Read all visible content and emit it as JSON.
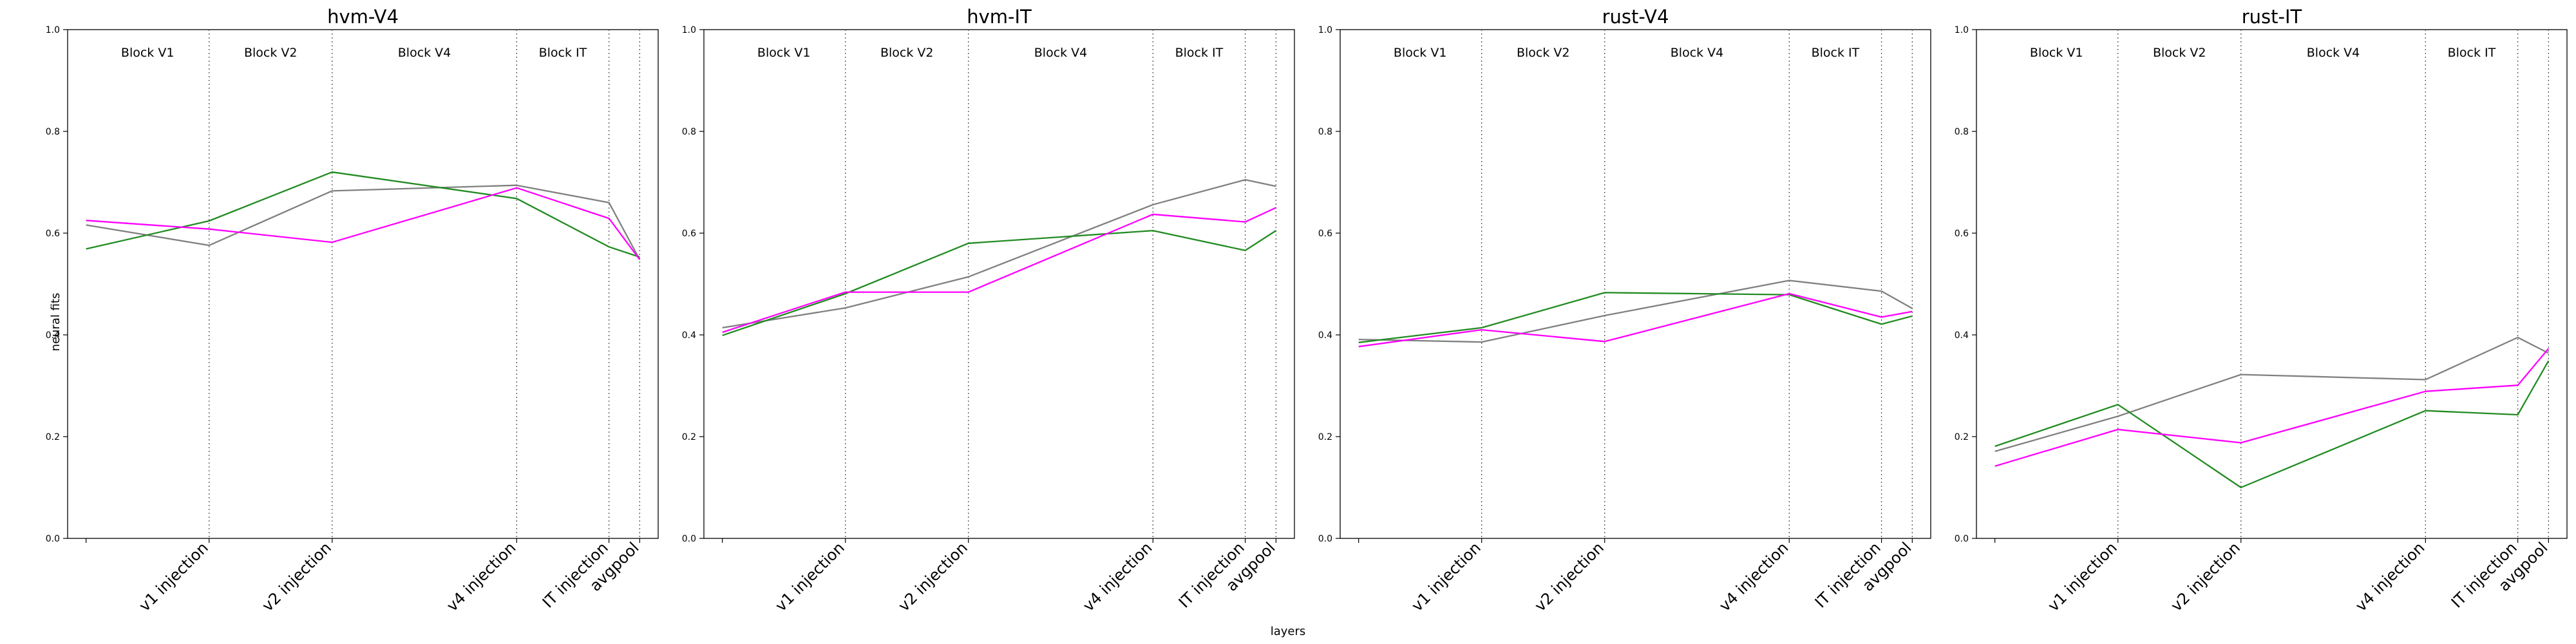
{
  "figure": {
    "xlabel": "layers",
    "ylabel": "neural fits"
  },
  "chart_data": [
    {
      "type": "line",
      "title": "hvm-V4",
      "ylim": [
        0.0,
        1.0
      ],
      "yticks": [
        "0.0",
        "0.2",
        "0.4",
        "0.6",
        "0.8",
        "1.0"
      ],
      "categories": [
        "",
        "v1 injection",
        "v2 injection",
        "v4 injection",
        "IT injection",
        "avgpool"
      ],
      "x": [
        0,
        1,
        2,
        3.5,
        4.25,
        4.5
      ],
      "grid": false,
      "colors": [
        "#808080",
        "#228B22",
        "#FF00FF"
      ],
      "series": [
        {
          "values": [
            0.616,
            0.576,
            0.683,
            0.694,
            0.66,
            0.548
          ]
        },
        {
          "values": [
            0.569,
            0.624,
            0.72,
            0.668,
            0.573,
            0.553
          ]
        },
        {
          "values": [
            0.625,
            0.608,
            0.582,
            0.689,
            0.629,
            0.548
          ]
        }
      ],
      "blocks": [
        {
          "label": "Block V1",
          "from": 0,
          "to": 1
        },
        {
          "label": "Block V2",
          "from": 1,
          "to": 2
        },
        {
          "label": "Block V4",
          "from": 2,
          "to": 3.5
        },
        {
          "label": "Block IT",
          "from": 3.5,
          "to": 4.25
        }
      ],
      "vlines": [
        1,
        2,
        3.5,
        4.25,
        4.5
      ]
    },
    {
      "type": "line",
      "title": "hvm-IT",
      "ylim": [
        0.0,
        1.0
      ],
      "yticks": [
        "0.0",
        "0.2",
        "0.4",
        "0.6",
        "0.8",
        "1.0"
      ],
      "categories": [
        "",
        "v1 injection",
        "v2 injection",
        "v4 injection",
        "IT injection",
        "avgpool"
      ],
      "x": [
        0,
        1,
        2,
        3.5,
        4.25,
        4.5
      ],
      "grid": false,
      "colors": [
        "#808080",
        "#228B22",
        "#FF00FF"
      ],
      "series": [
        {
          "values": [
            0.414,
            0.453,
            0.514,
            0.656,
            0.705,
            0.692
          ]
        },
        {
          "values": [
            0.399,
            0.481,
            0.58,
            0.605,
            0.566,
            0.605
          ]
        },
        {
          "values": [
            0.405,
            0.484,
            0.484,
            0.637,
            0.622,
            0.65
          ]
        }
      ],
      "blocks": [
        {
          "label": "Block V1",
          "from": 0,
          "to": 1
        },
        {
          "label": "Block V2",
          "from": 1,
          "to": 2
        },
        {
          "label": "Block V4",
          "from": 2,
          "to": 3.5
        },
        {
          "label": "Block IT",
          "from": 3.5,
          "to": 4.25
        }
      ],
      "vlines": [
        1,
        2,
        3.5,
        4.25,
        4.5
      ]
    },
    {
      "type": "line",
      "title": "rust-V4",
      "ylim": [
        0.0,
        1.0
      ],
      "yticks": [
        "0.0",
        "0.2",
        "0.4",
        "0.6",
        "0.8",
        "1.0"
      ],
      "categories": [
        "",
        "v1 injection",
        "v2 injection",
        "v4 injection",
        "IT injection",
        "avgpool"
      ],
      "x": [
        0,
        1,
        2,
        3.5,
        4.25,
        4.5
      ],
      "grid": false,
      "colors": [
        "#808080",
        "#228B22",
        "#FF00FF"
      ],
      "series": [
        {
          "values": [
            0.391,
            0.386,
            0.438,
            0.507,
            0.486,
            0.452
          ]
        },
        {
          "values": [
            0.385,
            0.414,
            0.483,
            0.479,
            0.421,
            0.437
          ]
        },
        {
          "values": [
            0.377,
            0.41,
            0.387,
            0.481,
            0.435,
            0.446
          ]
        }
      ],
      "blocks": [
        {
          "label": "Block V1",
          "from": 0,
          "to": 1
        },
        {
          "label": "Block V2",
          "from": 1,
          "to": 2
        },
        {
          "label": "Block V4",
          "from": 2,
          "to": 3.5
        },
        {
          "label": "Block IT",
          "from": 3.5,
          "to": 4.25
        }
      ],
      "vlines": [
        1,
        2,
        3.5,
        4.25,
        4.5
      ]
    },
    {
      "type": "line",
      "title": "rust-IT",
      "ylim": [
        0.0,
        1.0
      ],
      "yticks": [
        "0.0",
        "0.2",
        "0.4",
        "0.6",
        "0.8",
        "1.0"
      ],
      "categories": [
        "",
        "v1 injection",
        "v2 injection",
        "v4 injection",
        "IT injection",
        "avgpool"
      ],
      "x": [
        0,
        1,
        2,
        3.5,
        4.25,
        4.5
      ],
      "grid": false,
      "colors": [
        "#808080",
        "#228B22",
        "#FF00FF"
      ],
      "series": [
        {
          "values": [
            0.171,
            0.24,
            0.322,
            0.312,
            0.395,
            0.364
          ]
        },
        {
          "values": [
            0.181,
            0.263,
            0.1,
            0.251,
            0.243,
            0.349
          ]
        },
        {
          "values": [
            0.142,
            0.214,
            0.188,
            0.289,
            0.301,
            0.373
          ]
        }
      ],
      "blocks": [
        {
          "label": "Block V1",
          "from": 0,
          "to": 1
        },
        {
          "label": "Block V2",
          "from": 1,
          "to": 2
        },
        {
          "label": "Block V4",
          "from": 2,
          "to": 3.5
        },
        {
          "label": "Block IT",
          "from": 3.5,
          "to": 4.25
        }
      ],
      "vlines": [
        1,
        2,
        3.5,
        4.25,
        4.5
      ]
    }
  ]
}
